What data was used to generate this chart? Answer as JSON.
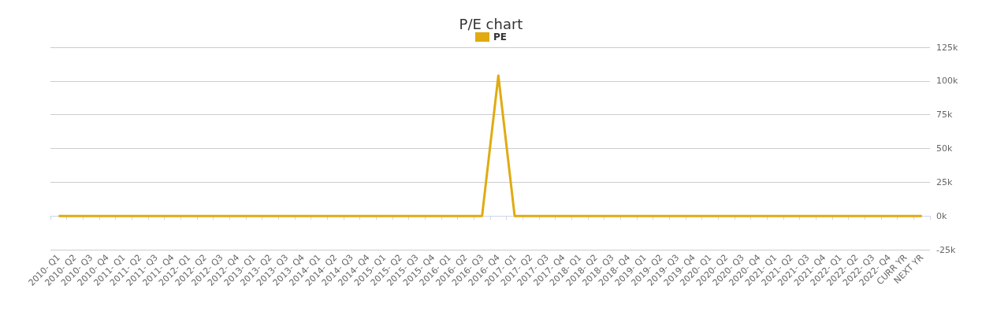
{
  "chart_data": {
    "type": "line",
    "title": "P/E chart",
    "categories": [
      "2010- Q1",
      "2010- Q2",
      "2010- Q3",
      "2010- Q4",
      "2011- Q1",
      "2011- Q2",
      "2011- Q3",
      "2011- Q4",
      "2012- Q1",
      "2012- Q2",
      "2012- Q3",
      "2012- Q4",
      "2013- Q1",
      "2013- Q2",
      "2013- Q3",
      "2013- Q4",
      "2014- Q1",
      "2014- Q2",
      "2014- Q3",
      "2014- Q4",
      "2015- Q1",
      "2015- Q2",
      "2015- Q3",
      "2015- Q4",
      "2016- Q1",
      "2016- Q2",
      "2016- Q3",
      "2016- Q4",
      "2017- Q1",
      "2017- Q2",
      "2017- Q3",
      "2017- Q4",
      "2018- Q1",
      "2018- Q2",
      "2018- Q3",
      "2018- Q4",
      "2019- Q1",
      "2019- Q2",
      "2019- Q3",
      "2019- Q4",
      "2020- Q1",
      "2020- Q2",
      "2020- Q3",
      "2020- Q4",
      "2021- Q1",
      "2021- Q2",
      "2021- Q3",
      "2021- Q4",
      "2022- Q1",
      "2022- Q2",
      "2022- Q3",
      "2022- Q4",
      "CURR YR",
      "NEXT YR"
    ],
    "series": [
      {
        "name": "PE",
        "color": "#e0ab10",
        "values": [
          0,
          0,
          0,
          0,
          0,
          0,
          0,
          0,
          0,
          0,
          0,
          0,
          0,
          0,
          0,
          0,
          0,
          0,
          0,
          0,
          0,
          0,
          0,
          0,
          0,
          0,
          0,
          104000,
          0,
          0,
          0,
          0,
          0,
          0,
          0,
          0,
          0,
          0,
          0,
          0,
          0,
          0,
          0,
          0,
          0,
          0,
          0,
          0,
          0,
          0,
          0,
          0,
          0,
          0
        ]
      }
    ],
    "ylim": [
      -25000,
      125000
    ],
    "yticks": [
      {
        "value": -25000,
        "label": "-25k"
      },
      {
        "value": 0,
        "label": "0k"
      },
      {
        "value": 25000,
        "label": "25k"
      },
      {
        "value": 50000,
        "label": "50k"
      },
      {
        "value": 75000,
        "label": "75k"
      },
      {
        "value": 100000,
        "label": "100k"
      },
      {
        "value": 125000,
        "label": "125k"
      }
    ],
    "grid": "y",
    "legend": "top",
    "marker": "none"
  }
}
